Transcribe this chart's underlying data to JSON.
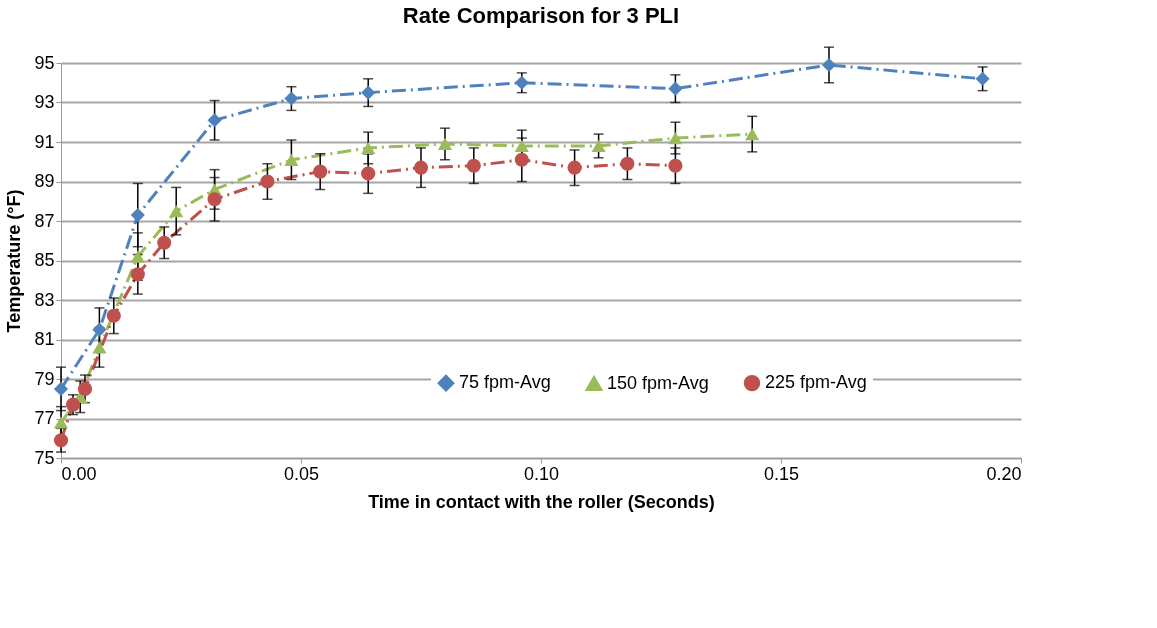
{
  "chart_data": {
    "type": "line",
    "title": "Rate Comparison for 3 PLI",
    "xlabel": "Time in contact with the roller (Seconds)",
    "ylabel": "Temperature (°F)",
    "xlim": [
      0,
      0.2
    ],
    "xticks": [
      {
        "value": 0,
        "label": "0.00"
      },
      {
        "value": 0.05,
        "label": "0.05"
      },
      {
        "value": 0.1,
        "label": "0.10"
      },
      {
        "value": 0.15,
        "label": "0.15"
      },
      {
        "value": 0.2,
        "label": "0.20"
      }
    ],
    "ylim": [
      75,
      95
    ],
    "yticks": [
      75,
      77,
      79,
      81,
      83,
      85,
      87,
      89,
      91,
      93,
      95
    ],
    "grid": "y",
    "legend": "bottom right",
    "line_style": "dashed",
    "series": [
      {
        "name": "75 fpm-Avg",
        "color": "#4f81bd",
        "marker": "diamond",
        "x": [
          0,
          0.008,
          0.016,
          0.032,
          0.048,
          0.064,
          0.096,
          0.128,
          0.16,
          0.192
        ],
        "values": [
          78.5,
          81.5,
          87.3,
          92.1,
          93.2,
          93.5,
          94.0,
          93.7,
          94.9,
          94.2
        ],
        "errors": [
          1.1,
          1.1,
          1.6,
          1.0,
          0.6,
          0.7,
          0.5,
          0.7,
          0.9,
          0.6
        ]
      },
      {
        "name": "150 fpm-Avg",
        "color": "#9bbb59",
        "marker": "triangle",
        "x": [
          0,
          0.004,
          0.008,
          0.016,
          0.024,
          0.032,
          0.048,
          0.064,
          0.08,
          0.096,
          0.112,
          0.128,
          0.144
        ],
        "values": [
          76.8,
          78.1,
          80.6,
          85.2,
          87.5,
          88.6,
          90.1,
          90.7,
          90.9,
          90.8,
          90.8,
          91.2,
          91.4
        ],
        "errors": [
          0.8,
          0.8,
          1.0,
          1.2,
          1.2,
          1.0,
          1.0,
          0.8,
          0.8,
          0.8,
          0.6,
          0.8,
          0.9
        ]
      },
      {
        "name": "225 fpm-Avg",
        "color": "#c0504d",
        "marker": "circle",
        "x": [
          0,
          0.0025,
          0.005,
          0.011,
          0.016,
          0.0215,
          0.032,
          0.043,
          0.054,
          0.064,
          0.075,
          0.086,
          0.096,
          0.107,
          0.118,
          0.128
        ],
        "values": [
          75.9,
          77.7,
          78.5,
          82.2,
          84.3,
          85.9,
          88.1,
          89.0,
          89.5,
          89.4,
          89.7,
          89.8,
          90.1,
          89.7,
          89.9,
          89.8
        ],
        "errors": [
          0.6,
          0.5,
          0.7,
          0.9,
          1.0,
          0.8,
          1.1,
          0.9,
          0.9,
          1.0,
          1.0,
          0.9,
          1.1,
          0.9,
          0.8,
          0.9
        ]
      }
    ]
  }
}
